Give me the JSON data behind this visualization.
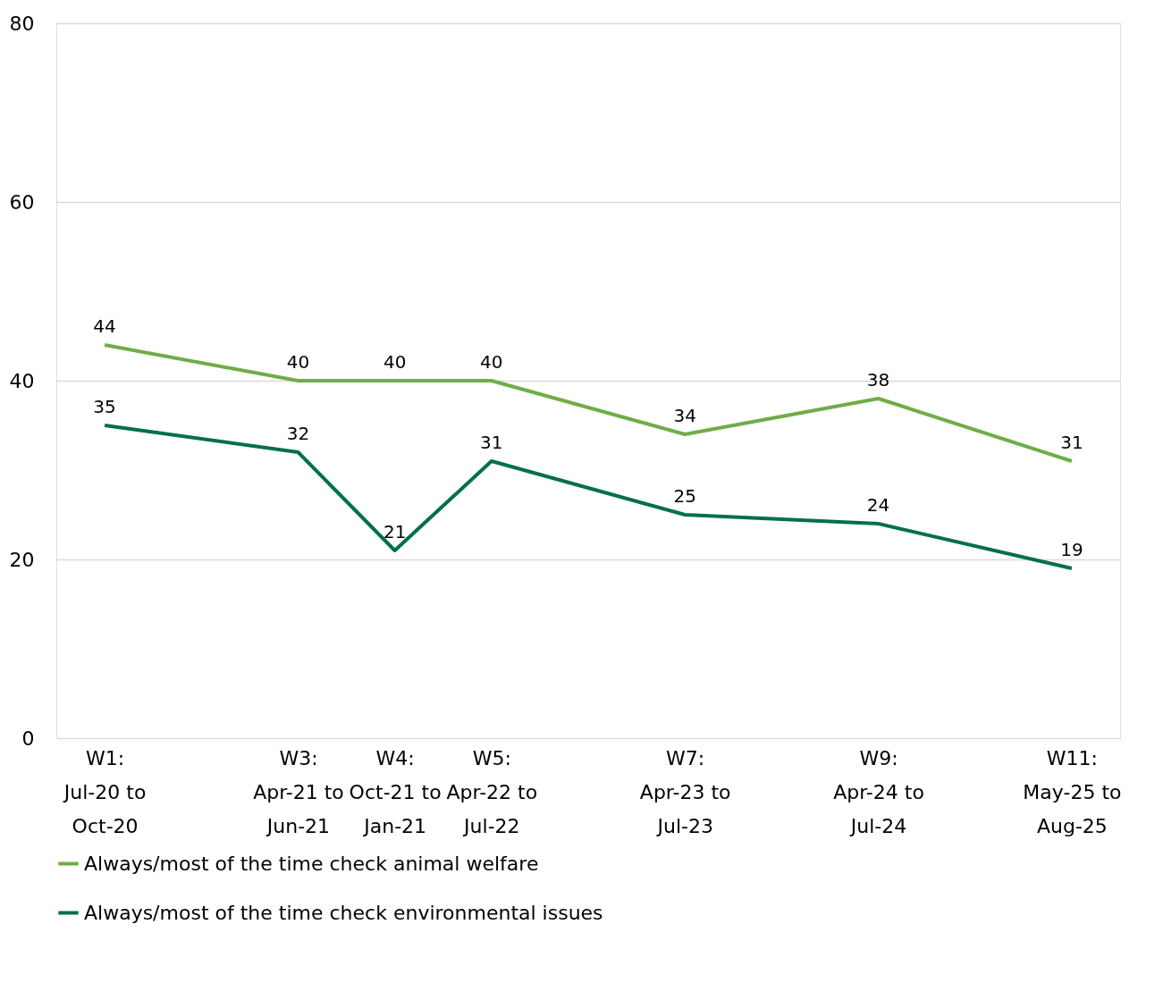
{
  "chart_data": {
    "type": "line",
    "categories": [
      "W1: Jul-20 to Oct-20",
      null,
      "W3: Apr-21 to Jun-21",
      "W4: Oct-21 to Jan-21",
      "W5: Apr-22 to Jul-22",
      null,
      "W7: Apr-23 to Jul-23",
      null,
      "W9: Apr-24 to Jul-24",
      null,
      "W11: May-25 to Aug-25"
    ],
    "series": [
      {
        "name": "Always/most of the time check animal welfare",
        "color": "#70ad47",
        "values": [
          44,
          null,
          40,
          40,
          40,
          null,
          34,
          null,
          38,
          null,
          31
        ]
      },
      {
        "name": "Always/most of the time check environmental issues",
        "color": "#00704a",
        "values": [
          35,
          null,
          32,
          21,
          31,
          null,
          25,
          null,
          24,
          null,
          19
        ]
      }
    ],
    "ylim": [
      0,
      80
    ],
    "yticks": [
      0,
      20,
      40,
      60,
      80
    ],
    "grid": "y",
    "legend": "bottom",
    "data_labels": true,
    "marker": "none",
    "line_style": "solid"
  }
}
